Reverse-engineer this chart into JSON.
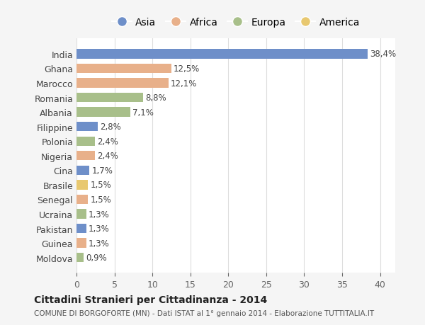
{
  "countries": [
    "India",
    "Ghana",
    "Marocco",
    "Romania",
    "Albania",
    "Filippine",
    "Polonia",
    "Nigeria",
    "Cina",
    "Brasile",
    "Senegal",
    "Ucraina",
    "Pakistan",
    "Guinea",
    "Moldova"
  ],
  "values": [
    38.4,
    12.5,
    12.1,
    8.8,
    7.1,
    2.8,
    2.4,
    2.4,
    1.7,
    1.5,
    1.5,
    1.3,
    1.3,
    1.3,
    0.9
  ],
  "labels": [
    "38,4%",
    "12,5%",
    "12,1%",
    "8,8%",
    "7,1%",
    "2,8%",
    "2,4%",
    "2,4%",
    "1,7%",
    "1,5%",
    "1,5%",
    "1,3%",
    "1,3%",
    "1,3%",
    "0,9%"
  ],
  "continents": [
    "Asia",
    "Africa",
    "Africa",
    "Europa",
    "Europa",
    "Asia",
    "Europa",
    "Africa",
    "Asia",
    "America",
    "Africa",
    "Europa",
    "Asia",
    "Africa",
    "Europa"
  ],
  "colors": {
    "Asia": "#6e8fc9",
    "Africa": "#e8b08a",
    "Europa": "#a8bf8a",
    "America": "#e8c870"
  },
  "legend_order": [
    "Asia",
    "Africa",
    "Europa",
    "America"
  ],
  "title": "Cittadini Stranieri per Cittadinanza - 2014",
  "subtitle": "COMUNE DI BORGOFORTE (MN) - Dati ISTAT al 1° gennaio 2014 - Elaborazione TUTTITALIA.IT",
  "xlim": [
    0,
    42
  ],
  "xticks": [
    0,
    5,
    10,
    15,
    20,
    25,
    30,
    35,
    40
  ],
  "background_color": "#f5f5f5",
  "plot_background": "#ffffff"
}
